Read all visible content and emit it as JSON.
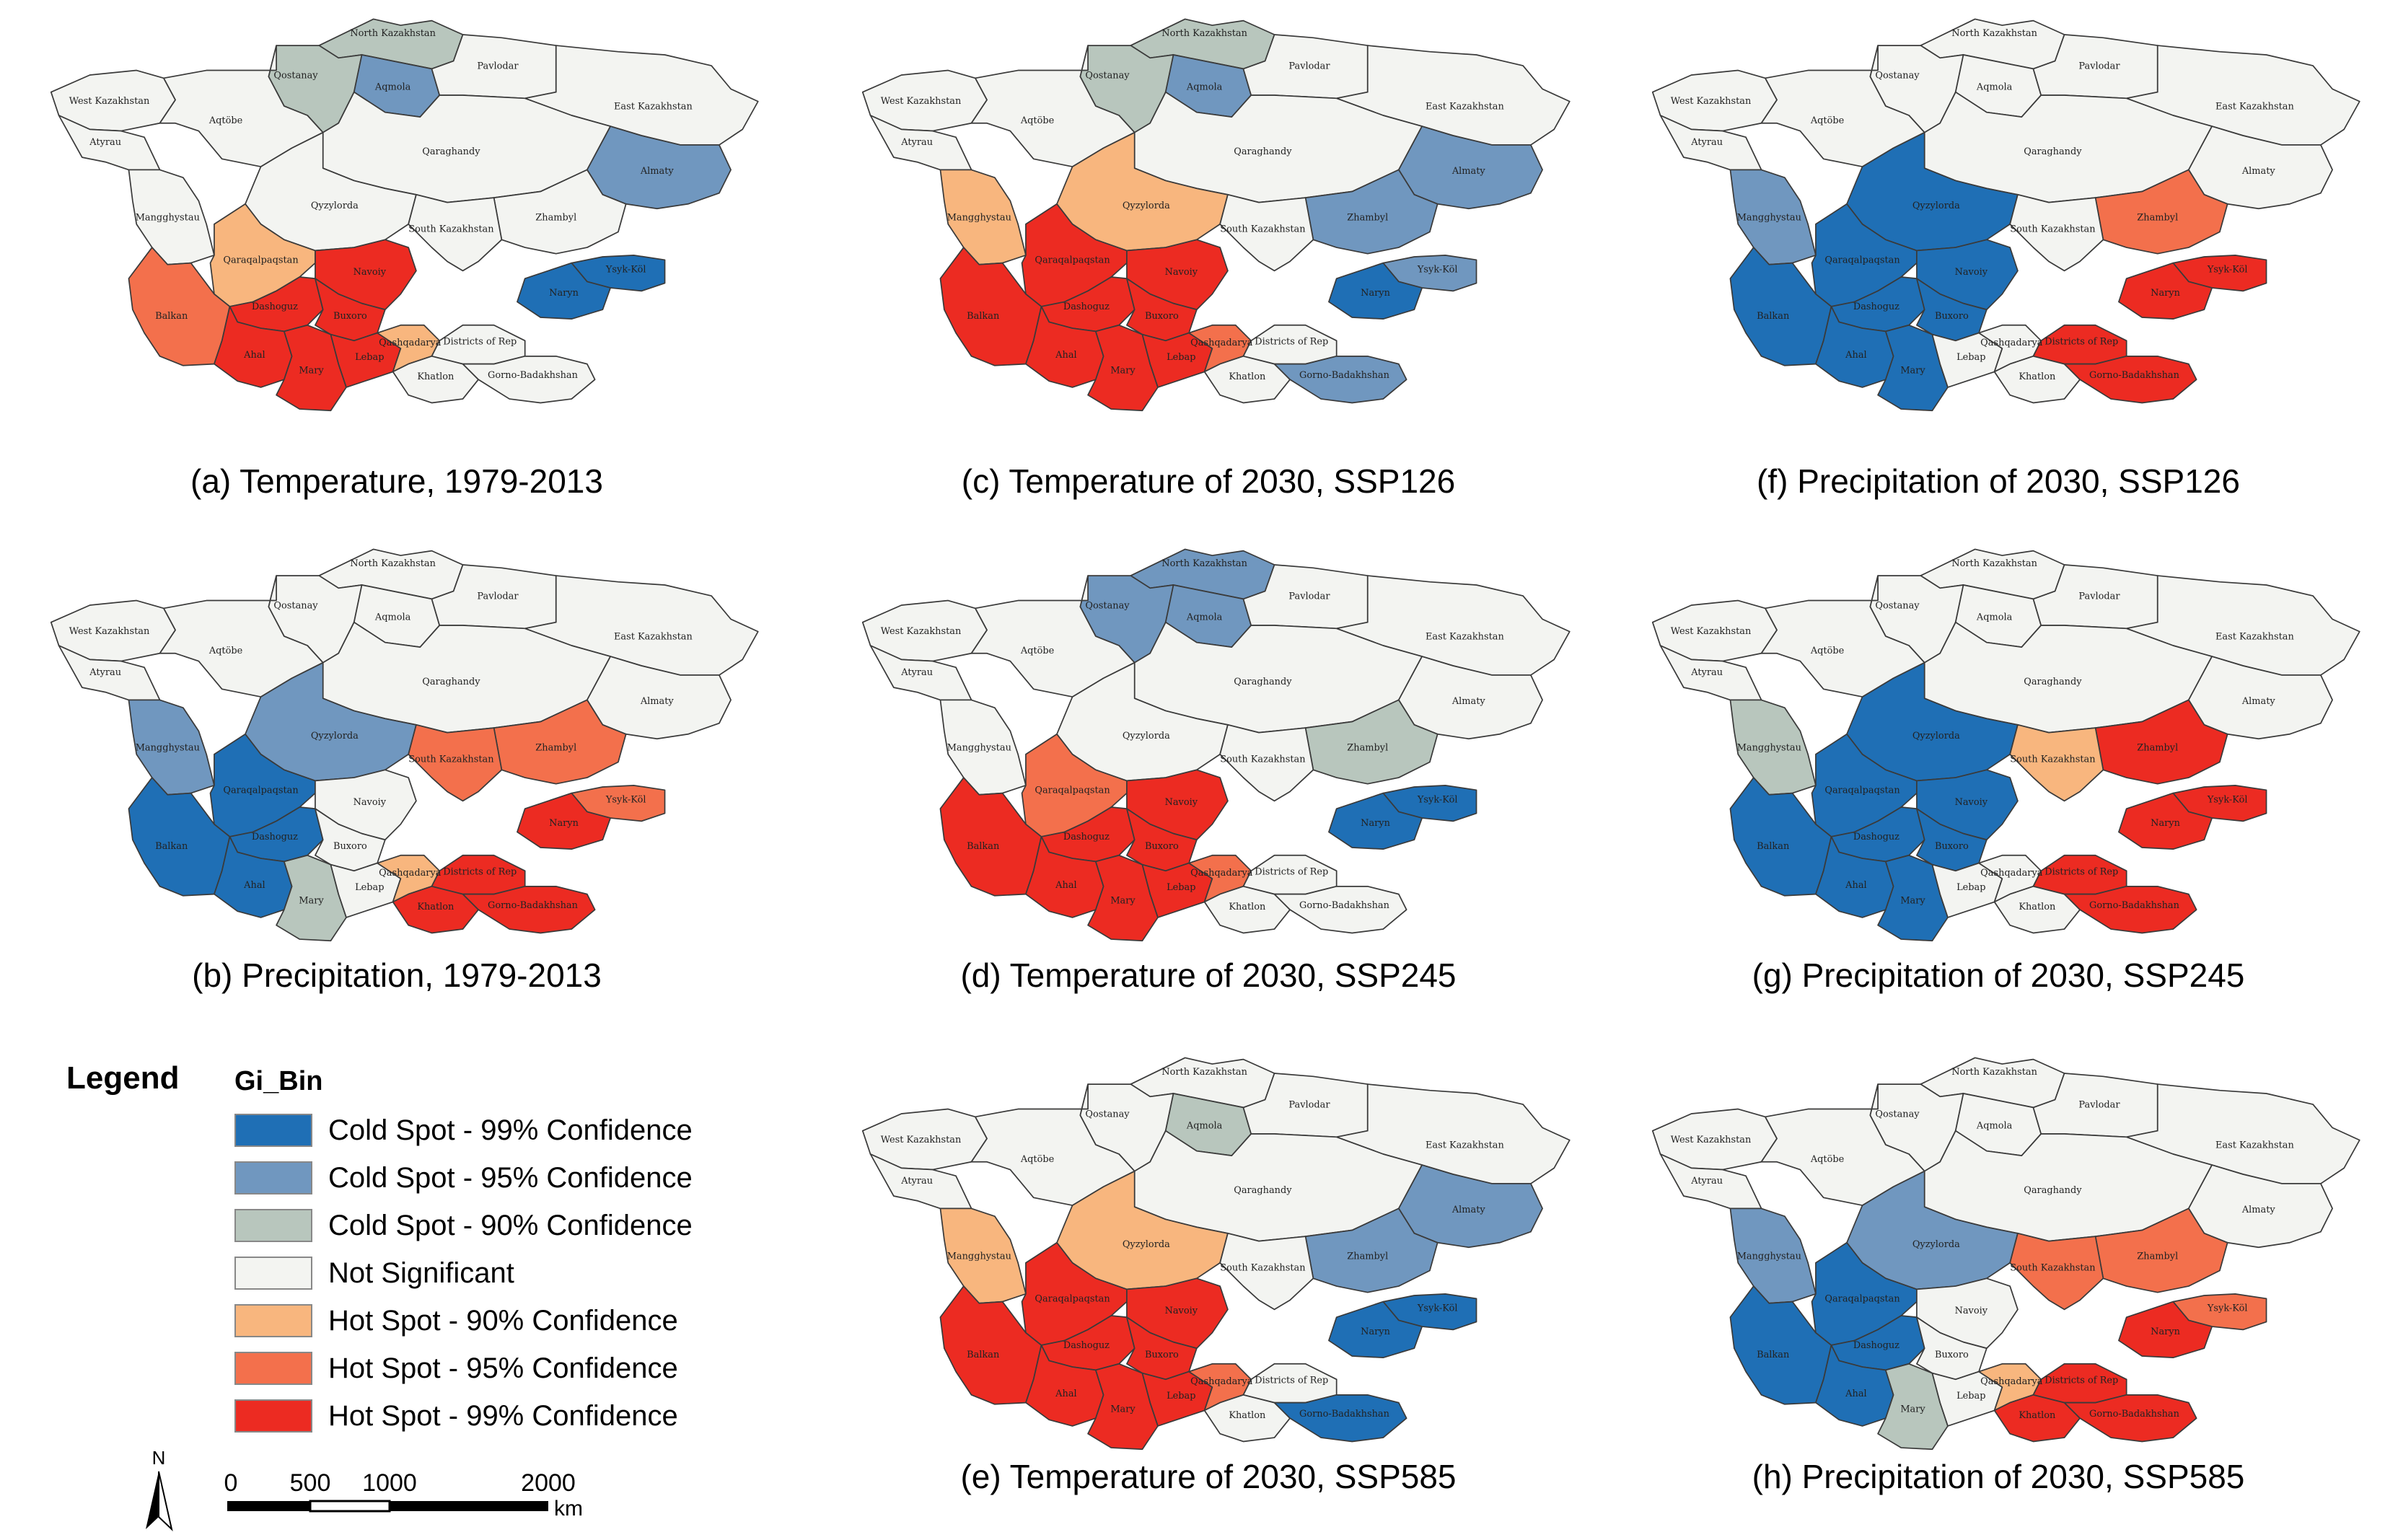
{
  "legend": {
    "title": "Legend",
    "subtitle": "Gi_Bin",
    "classes": [
      {
        "id": "c99",
        "label": "Cold Spot - 99% Confidence",
        "color": "#1f6fb5"
      },
      {
        "id": "c95",
        "label": "Cold Spot - 95% Confidence",
        "color": "#7097bf"
      },
      {
        "id": "c90",
        "label": "Cold Spot - 90% Confidence",
        "color": "#b8c6bd"
      },
      {
        "id": "ns",
        "label": "Not Significant",
        "color": "#f3f4f1"
      },
      {
        "id": "h90",
        "label": "Hot Spot - 90% Confidence",
        "color": "#f8b67e"
      },
      {
        "id": "h95",
        "label": "Hot Spot - 95% Confidence",
        "color": "#f3704c"
      },
      {
        "id": "h99",
        "label": "Hot Spot - 99% Confidence",
        "color": "#ec2b22"
      }
    ]
  },
  "scale_bar": {
    "ticks": [
      "0",
      "500",
      "1000",
      "2000"
    ],
    "unit": "km",
    "north": "N"
  },
  "region_labels": {
    "north_kazakhstan": "North Kazakhstan",
    "pavlodar": "Pavlodar",
    "qostanay": "Qostanay",
    "aqmola": "Aqmola",
    "west_kazakhstan": "West Kazakhstan",
    "east_kazakhstan": "East Kazakhstan",
    "atyrau": "Atyrau",
    "aqtobe": "Aqtöbe",
    "qaraghandy": "Qaraghandy",
    "qyzylorda": "Qyzylorda",
    "mangghystau": "Mangghystau",
    "almaty": "Almaty",
    "zhambyl": "Zhambyl",
    "south_kazakhstan": "South Kazakhstan",
    "qaraqalpaqstan": "Qaraqalpaqstan",
    "navoiy": "Navoiy",
    "balkan": "Balkan",
    "dashoguz": "Dashoguz",
    "buxoro": "Buxoro",
    "ahal": "Ahal",
    "mary": "Mary",
    "lebap": "Lebap",
    "ysyk_kol": "Ysyk-Köl",
    "naryn": "Naryn",
    "qashqadarya": "Qashqadarya",
    "districts_of_rep": "Districts of Rep",
    "gorno_badakhshan": "Gorno-Badakhshan",
    "khatlon": "Khatlon"
  },
  "maps": [
    {
      "id": "a",
      "caption": "(a) Temperature, 1979-2013",
      "regions": {
        "north_kazakhstan": "c90",
        "pavlodar": "ns",
        "qostanay": "c90",
        "aqmola": "c95",
        "west_kazakhstan": "ns",
        "east_kazakhstan": "ns",
        "atyrau": "ns",
        "aqtobe": "ns",
        "qaraghandy": "ns",
        "qyzylorda": "ns",
        "mangghystau": "ns",
        "almaty": "c95",
        "zhambyl": "ns",
        "south_kazakhstan": "ns",
        "qaraqalpaqstan": "h90",
        "navoiy": "h99",
        "balkan": "h95",
        "dashoguz": "h99",
        "buxoro": "h99",
        "ahal": "h99",
        "mary": "h99",
        "lebap": "h99",
        "ysyk_kol": "c99",
        "naryn": "c99",
        "qashqadarya": "h90",
        "districts_of_rep": "ns",
        "gorno_badakhshan": "ns",
        "khatlon": "ns"
      }
    },
    {
      "id": "b",
      "caption": "(b) Precipitation, 1979-2013",
      "regions": {
        "north_kazakhstan": "ns",
        "pavlodar": "ns",
        "qostanay": "ns",
        "aqmola": "ns",
        "west_kazakhstan": "ns",
        "east_kazakhstan": "ns",
        "atyrau": "ns",
        "aqtobe": "ns",
        "qaraghandy": "ns",
        "qyzylorda": "c95",
        "mangghystau": "c95",
        "almaty": "ns",
        "zhambyl": "h95",
        "south_kazakhstan": "h95",
        "qaraqalpaqstan": "c99",
        "navoiy": "ns",
        "balkan": "c99",
        "dashoguz": "c99",
        "buxoro": "ns",
        "ahal": "c99",
        "mary": "c90",
        "lebap": "ns",
        "ysyk_kol": "h95",
        "naryn": "h99",
        "qashqadarya": "h90",
        "districts_of_rep": "h99",
        "gorno_badakhshan": "h99",
        "khatlon": "h99"
      }
    },
    {
      "id": "c",
      "caption": "(c) Temperature of 2030, SSP126",
      "regions": {
        "north_kazakhstan": "c90",
        "pavlodar": "ns",
        "qostanay": "c90",
        "aqmola": "c95",
        "west_kazakhstan": "ns",
        "east_kazakhstan": "ns",
        "atyrau": "ns",
        "aqtobe": "ns",
        "qaraghandy": "ns",
        "qyzylorda": "h90",
        "mangghystau": "h90",
        "almaty": "c95",
        "zhambyl": "c95",
        "south_kazakhstan": "ns",
        "qaraqalpaqstan": "h99",
        "navoiy": "h99",
        "balkan": "h99",
        "dashoguz": "h99",
        "buxoro": "h99",
        "ahal": "h99",
        "mary": "h99",
        "lebap": "h99",
        "ysyk_kol": "c95",
        "naryn": "c99",
        "qashqadarya": "h95",
        "districts_of_rep": "ns",
        "gorno_badakhshan": "c95",
        "khatlon": "ns"
      }
    },
    {
      "id": "d",
      "caption": "(d) Temperature of 2030, SSP245",
      "regions": {
        "north_kazakhstan": "c95",
        "pavlodar": "ns",
        "qostanay": "c95",
        "aqmola": "c95",
        "west_kazakhstan": "ns",
        "east_kazakhstan": "ns",
        "atyrau": "ns",
        "aqtobe": "ns",
        "qaraghandy": "ns",
        "qyzylorda": "ns",
        "mangghystau": "ns",
        "almaty": "ns",
        "zhambyl": "c90",
        "south_kazakhstan": "ns",
        "qaraqalpaqstan": "h95",
        "navoiy": "h99",
        "balkan": "h99",
        "dashoguz": "h99",
        "buxoro": "h99",
        "ahal": "h99",
        "mary": "h99",
        "lebap": "h99",
        "ysyk_kol": "c99",
        "naryn": "c99",
        "qashqadarya": "h95",
        "districts_of_rep": "ns",
        "gorno_badakhshan": "ns",
        "khatlon": "ns"
      }
    },
    {
      "id": "e",
      "caption": "(e) Temperature of 2030, SSP585",
      "regions": {
        "north_kazakhstan": "ns",
        "pavlodar": "ns",
        "qostanay": "ns",
        "aqmola": "c90",
        "west_kazakhstan": "ns",
        "east_kazakhstan": "ns",
        "atyrau": "ns",
        "aqtobe": "ns",
        "qaraghandy": "ns",
        "qyzylorda": "h90",
        "mangghystau": "h90",
        "almaty": "c95",
        "zhambyl": "c95",
        "south_kazakhstan": "ns",
        "qaraqalpaqstan": "h99",
        "navoiy": "h99",
        "balkan": "h99",
        "dashoguz": "h99",
        "buxoro": "h99",
        "ahal": "h99",
        "mary": "h99",
        "lebap": "h99",
        "ysyk_kol": "c99",
        "naryn": "c99",
        "qashqadarya": "h95",
        "districts_of_rep": "ns",
        "gorno_badakhshan": "c99",
        "khatlon": "ns"
      }
    },
    {
      "id": "f",
      "caption": "(f) Precipitation of 2030, SSP126",
      "regions": {
        "north_kazakhstan": "ns",
        "pavlodar": "ns",
        "qostanay": "ns",
        "aqmola": "ns",
        "west_kazakhstan": "ns",
        "east_kazakhstan": "ns",
        "atyrau": "ns",
        "aqtobe": "ns",
        "qaraghandy": "ns",
        "qyzylorda": "c99",
        "mangghystau": "c95",
        "almaty": "ns",
        "zhambyl": "h95",
        "south_kazakhstan": "ns",
        "qaraqalpaqstan": "c99",
        "navoiy": "c99",
        "balkan": "c99",
        "dashoguz": "c99",
        "buxoro": "c99",
        "ahal": "c99",
        "mary": "c99",
        "lebap": "ns",
        "ysyk_kol": "h99",
        "naryn": "h99",
        "qashqadarya": "ns",
        "districts_of_rep": "h99",
        "gorno_badakhshan": "h99",
        "khatlon": "ns"
      }
    },
    {
      "id": "g",
      "caption": "(g) Precipitation of 2030, SSP245",
      "regions": {
        "north_kazakhstan": "ns",
        "pavlodar": "ns",
        "qostanay": "ns",
        "aqmola": "ns",
        "west_kazakhstan": "ns",
        "east_kazakhstan": "ns",
        "atyrau": "ns",
        "aqtobe": "ns",
        "qaraghandy": "ns",
        "qyzylorda": "c99",
        "mangghystau": "c90",
        "almaty": "ns",
        "zhambyl": "h99",
        "south_kazakhstan": "h90",
        "qaraqalpaqstan": "c99",
        "navoiy": "c99",
        "balkan": "c99",
        "dashoguz": "c99",
        "buxoro": "c99",
        "ahal": "c99",
        "mary": "c99",
        "lebap": "ns",
        "ysyk_kol": "h99",
        "naryn": "h99",
        "qashqadarya": "ns",
        "districts_of_rep": "h99",
        "gorno_badakhshan": "h99",
        "khatlon": "ns"
      }
    },
    {
      "id": "h",
      "caption": "(h) Precipitation of 2030, SSP585",
      "regions": {
        "north_kazakhstan": "ns",
        "pavlodar": "ns",
        "qostanay": "ns",
        "aqmola": "ns",
        "west_kazakhstan": "ns",
        "east_kazakhstan": "ns",
        "atyrau": "ns",
        "aqtobe": "ns",
        "qaraghandy": "ns",
        "qyzylorda": "c95",
        "mangghystau": "c95",
        "almaty": "ns",
        "zhambyl": "h95",
        "south_kazakhstan": "h95",
        "qaraqalpaqstan": "c99",
        "navoiy": "ns",
        "balkan": "c99",
        "dashoguz": "c99",
        "buxoro": "ns",
        "ahal": "c99",
        "mary": "c90",
        "lebap": "ns",
        "ysyk_kol": "h95",
        "naryn": "h99",
        "qashqadarya": "h90",
        "districts_of_rep": "h99",
        "gorno_badakhshan": "h99",
        "khatlon": "h99"
      }
    }
  ]
}
